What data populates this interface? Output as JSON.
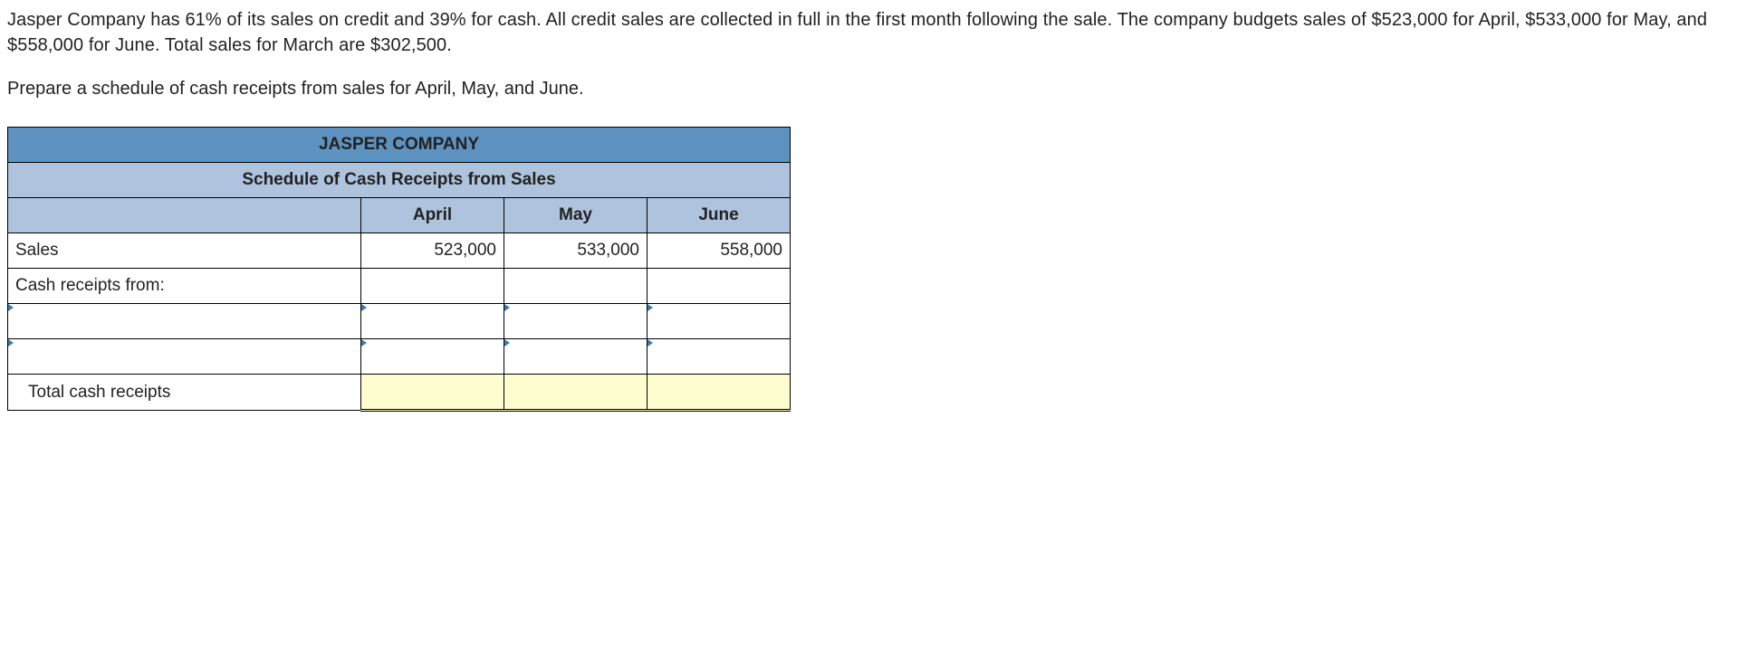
{
  "problem": {
    "paragraph1": "Jasper Company has 61% of its sales on credit and 39% for cash. All credit sales are collected in full in the first month following the sale. The company budgets sales of $523,000 for April, $533,000 for May, and $558,000 for June. Total sales for March are $302,500.",
    "paragraph2": "Prepare a schedule of cash receipts from sales for April, May, and June."
  },
  "table": {
    "company": "JASPER COMPANY",
    "subtitle": "Schedule of Cash Receipts from Sales",
    "months": {
      "m1": "April",
      "m2": "May",
      "m3": "June"
    },
    "rows": {
      "sales_label": "Sales",
      "sales": {
        "m1": "523,000",
        "m2": "533,000",
        "m3": "558,000"
      },
      "receipts_from": "Cash receipts from:",
      "line1": {
        "label": "",
        "m1": "",
        "m2": "",
        "m3": ""
      },
      "line2": {
        "label": "",
        "m1": "",
        "m2": "",
        "m3": ""
      },
      "total_label": "Total cash receipts",
      "total": {
        "m1": "",
        "m2": "",
        "m3": ""
      }
    }
  },
  "style": {
    "header_bg": "#5e92c1",
    "subheader_bg": "#aec3de",
    "total_bg": "#fdfdcf",
    "marker_color": "#3a77b7"
  }
}
